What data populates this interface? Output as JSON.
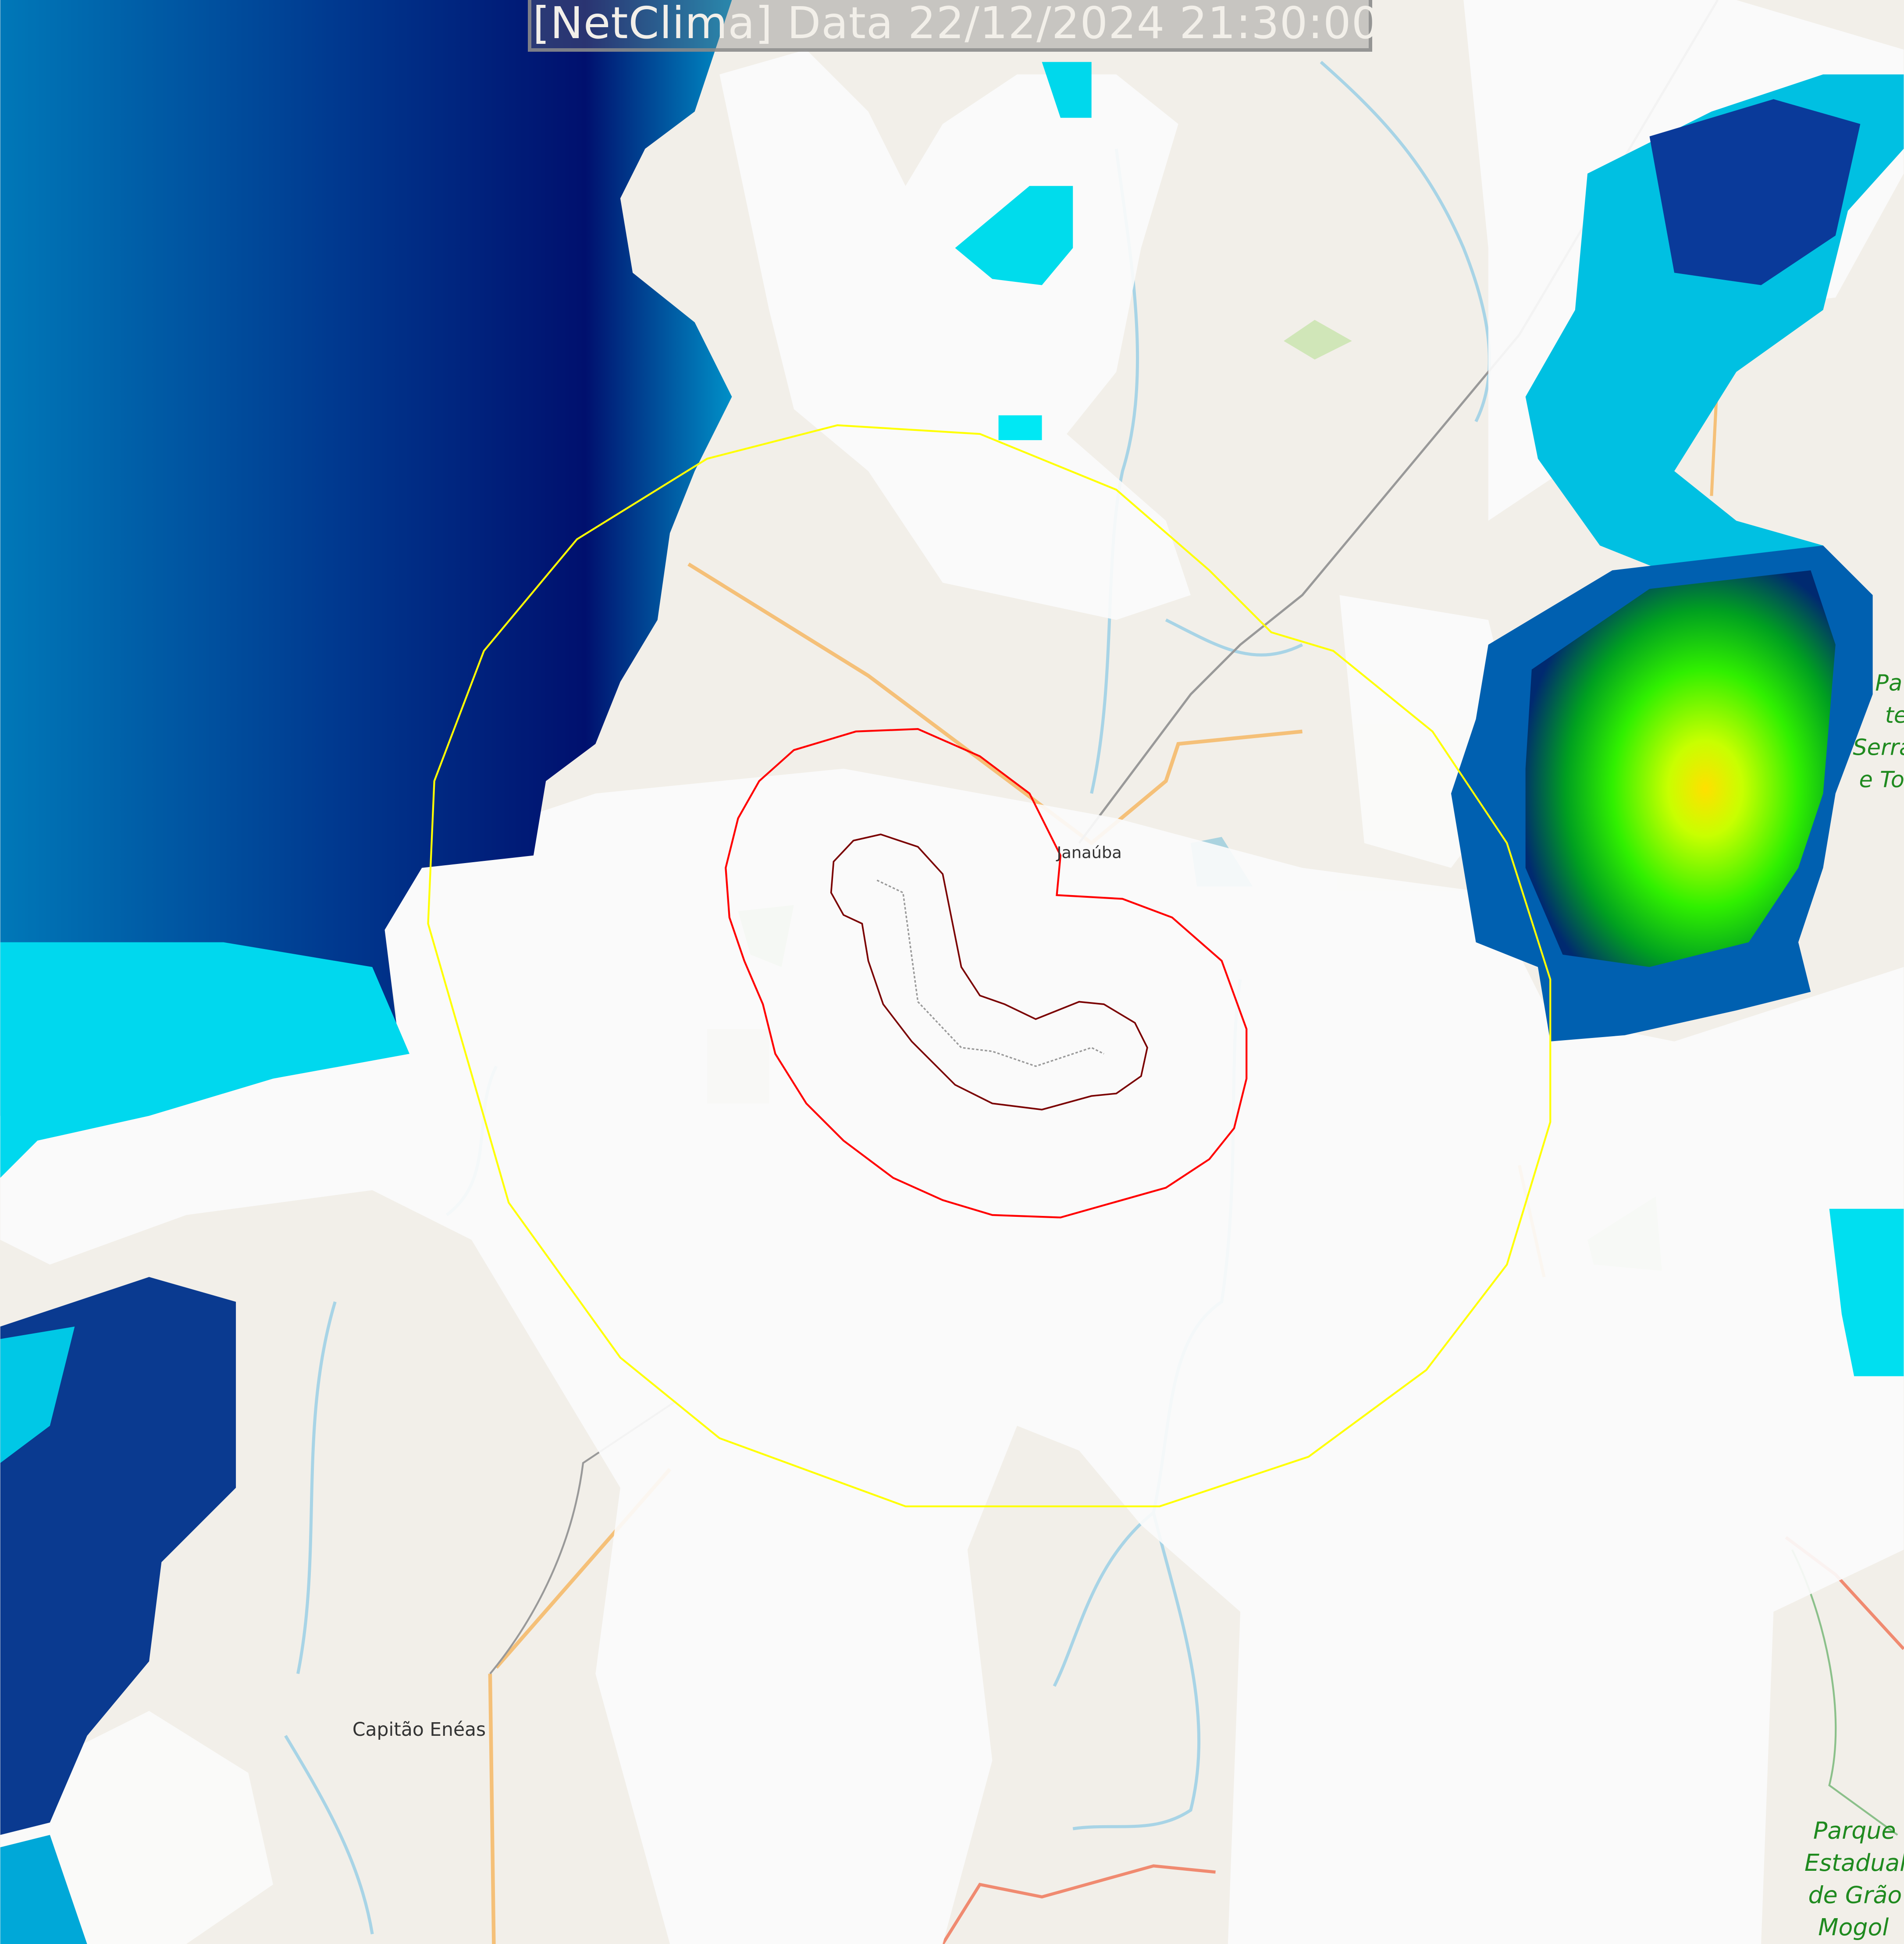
{
  "title": "[NetClima] Data 22/12/2024 21:30:00",
  "places": {
    "janauba": "Janaúba",
    "capitao_eneas": "Capitão Enéas",
    "park_top_lines": [
      "Pa",
      "te",
      "Serra",
      "e To"
    ],
    "park_bottom_lines": [
      "Parque",
      "Estadual",
      "de Grão",
      "Mogol"
    ]
  },
  "colors": {
    "map_background": "#f2efe9",
    "radius_circle": "#ffff00",
    "contour_outer": "#ff0000",
    "contour_inner": "#7a0000",
    "radar_low": "#00e5f0",
    "radar_mid": "#0070b0",
    "radar_high": "#000a6e",
    "radar_storm": "#00ff00",
    "radar_peak": "#ffe000"
  }
}
